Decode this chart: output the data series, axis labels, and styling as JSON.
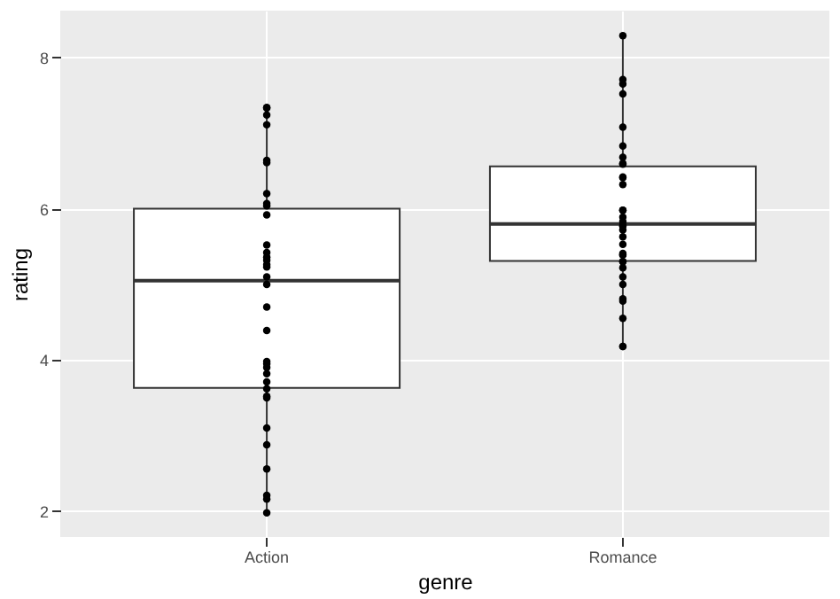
{
  "chart_data": {
    "type": "box",
    "xlabel": "genre",
    "ylabel": "rating",
    "categories": [
      "Action",
      "Romance"
    ],
    "boxes": [
      {
        "low": 1.98,
        "q1": 3.63,
        "median": 5.05,
        "q3": 6.0,
        "high": 7.34
      },
      {
        "low": 4.18,
        "q1": 5.31,
        "median": 5.8,
        "q3": 6.56,
        "high": 8.29
      }
    ],
    "series": [
      {
        "type": "scatter",
        "color": "#000000",
        "x": [
          "Action",
          "Action",
          "Action",
          "Action",
          "Action",
          "Action",
          "Action",
          "Action",
          "Action",
          "Action",
          "Action",
          "Action",
          "Action",
          "Action",
          "Action",
          "Action",
          "Action",
          "Action",
          "Action",
          "Action",
          "Action",
          "Action",
          "Action",
          "Action",
          "Action",
          "Action",
          "Action",
          "Action",
          "Action",
          "Action",
          "Action",
          "Action",
          "Action",
          "Action",
          "Romance",
          "Romance",
          "Romance",
          "Romance",
          "Romance",
          "Romance",
          "Romance",
          "Romance",
          "Romance",
          "Romance",
          "Romance",
          "Romance",
          "Romance",
          "Romance",
          "Romance",
          "Romance",
          "Romance",
          "Romance",
          "Romance",
          "Romance",
          "Romance",
          "Romance",
          "Romance",
          "Romance",
          "Romance",
          "Romance",
          "Romance",
          "Romance",
          "Romance",
          "Romance",
          "Romance",
          "Romance",
          "Romance",
          "Romance"
        ],
        "values": [
          7.33,
          7.24,
          7.34,
          7.11,
          6.61,
          6.64,
          6.2,
          6.04,
          6.07,
          5.92,
          5.52,
          5.42,
          5.36,
          5.32,
          5.26,
          5.23,
          5.1,
          5.0,
          4.7,
          4.39,
          3.98,
          3.95,
          3.9,
          3.82,
          3.71,
          3.62,
          3.52,
          3.5,
          3.1,
          2.88,
          2.56,
          2.21,
          2.16,
          1.98,
          8.29,
          7.71,
          7.65,
          7.52,
          7.08,
          6.83,
          6.59,
          6.68,
          6.6,
          6.42,
          6.41,
          6.32,
          5.98,
          5.98,
          5.89,
          5.83,
          5.77,
          5.78,
          5.72,
          5.63,
          5.53,
          5.39,
          5.41,
          5.39,
          5.3,
          5.3,
          5.22,
          5.1,
          5.0,
          4.81,
          4.78,
          4.55,
          4.18,
          4.18
        ]
      }
    ],
    "ylim": [
      1.66,
      8.62
    ],
    "yticks": [
      2,
      4,
      6,
      8
    ],
    "grid": true,
    "marker": "circle"
  }
}
